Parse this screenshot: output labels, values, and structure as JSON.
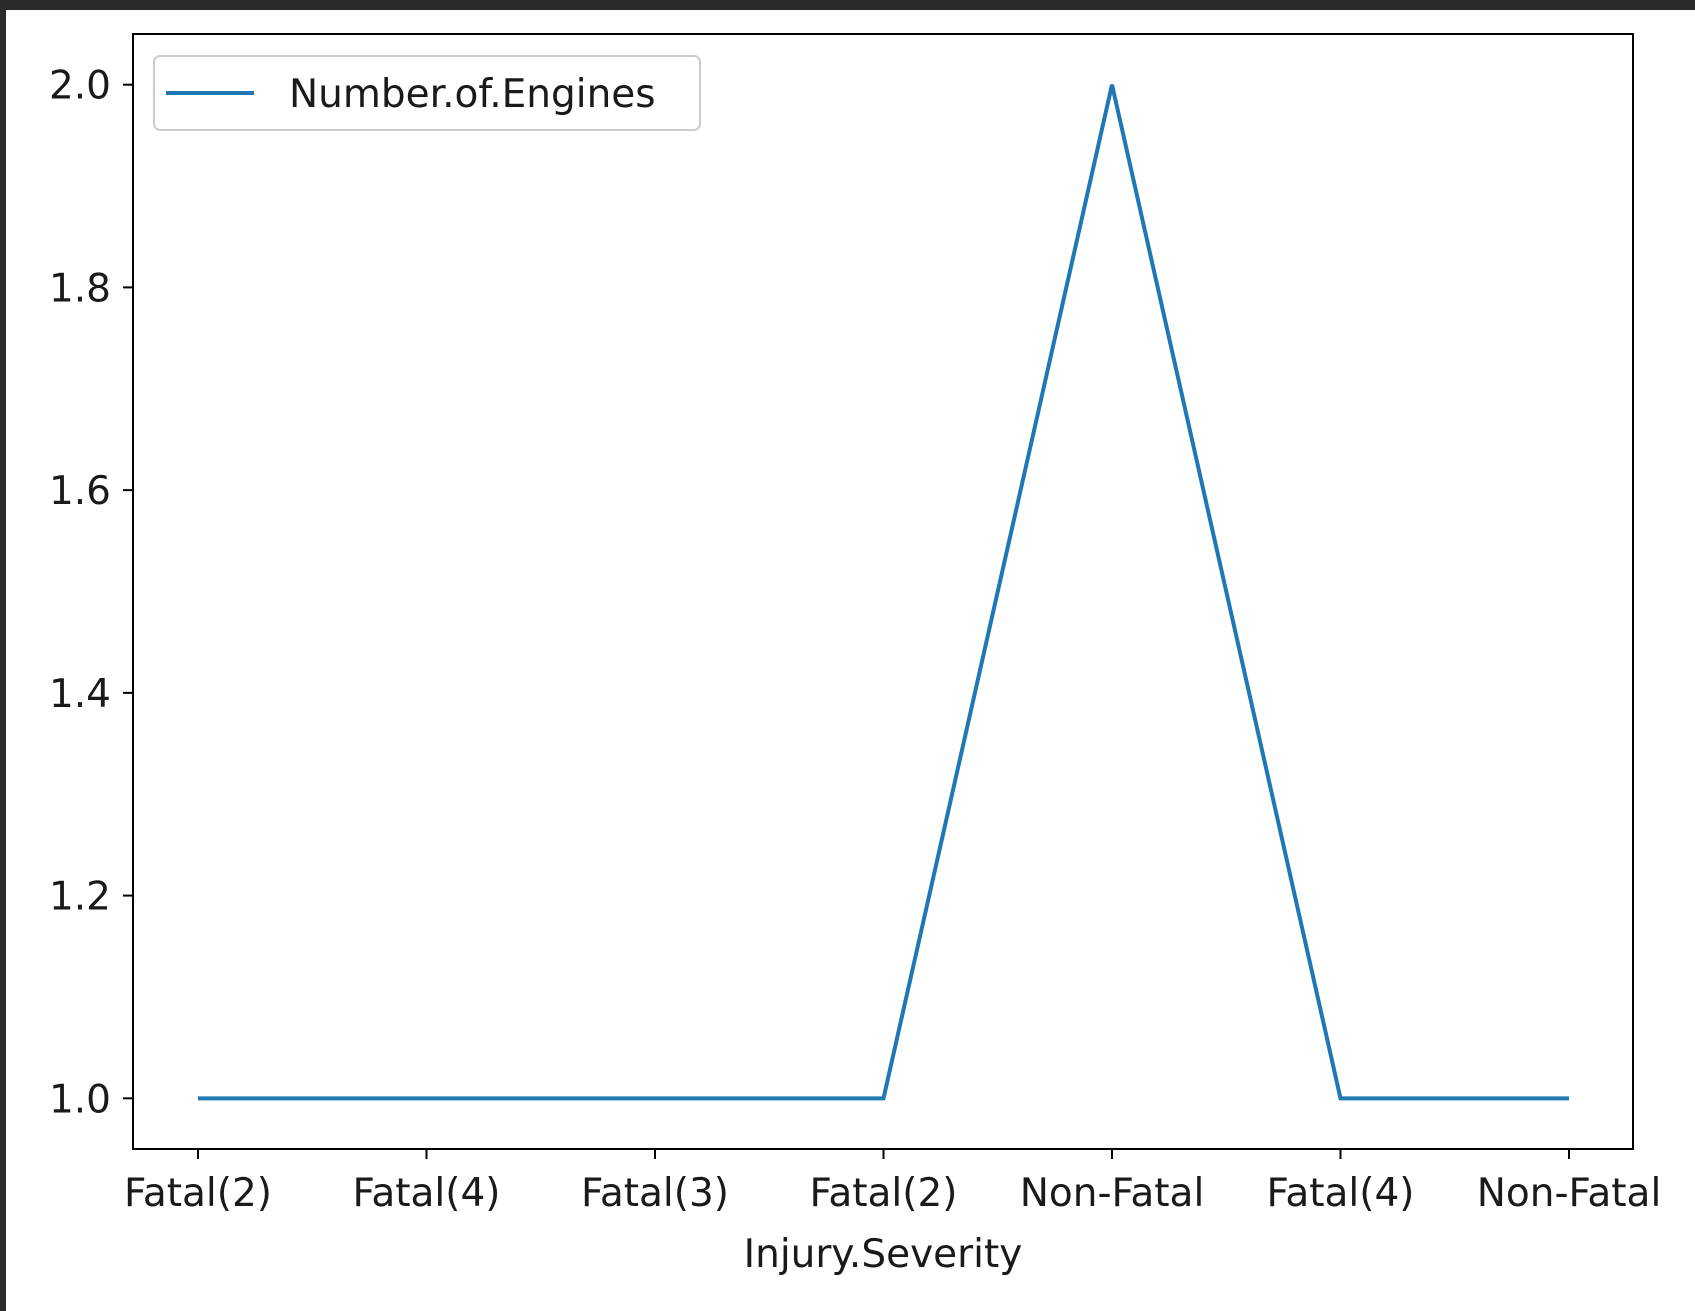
{
  "chart_data": {
    "type": "line",
    "title": "",
    "xlabel": "Injury.Severity",
    "ylabel": "",
    "categories": [
      "Fatal(2)",
      "Fatal(4)",
      "Fatal(3)",
      "Fatal(2)",
      "Non-Fatal",
      "Fatal(4)",
      "Non-Fatal"
    ],
    "series": [
      {
        "name": "Number.of.Engines",
        "values": [
          1.0,
          1.0,
          1.0,
          1.0,
          2.0,
          1.0,
          1.0
        ],
        "color": "#1f77b4"
      }
    ],
    "yticks": [
      "1.0",
      "1.2",
      "1.4",
      "1.6",
      "1.8",
      "2.0"
    ],
    "ylim": [
      0.95,
      2.05
    ],
    "grid": false,
    "legend": "upper-left"
  }
}
